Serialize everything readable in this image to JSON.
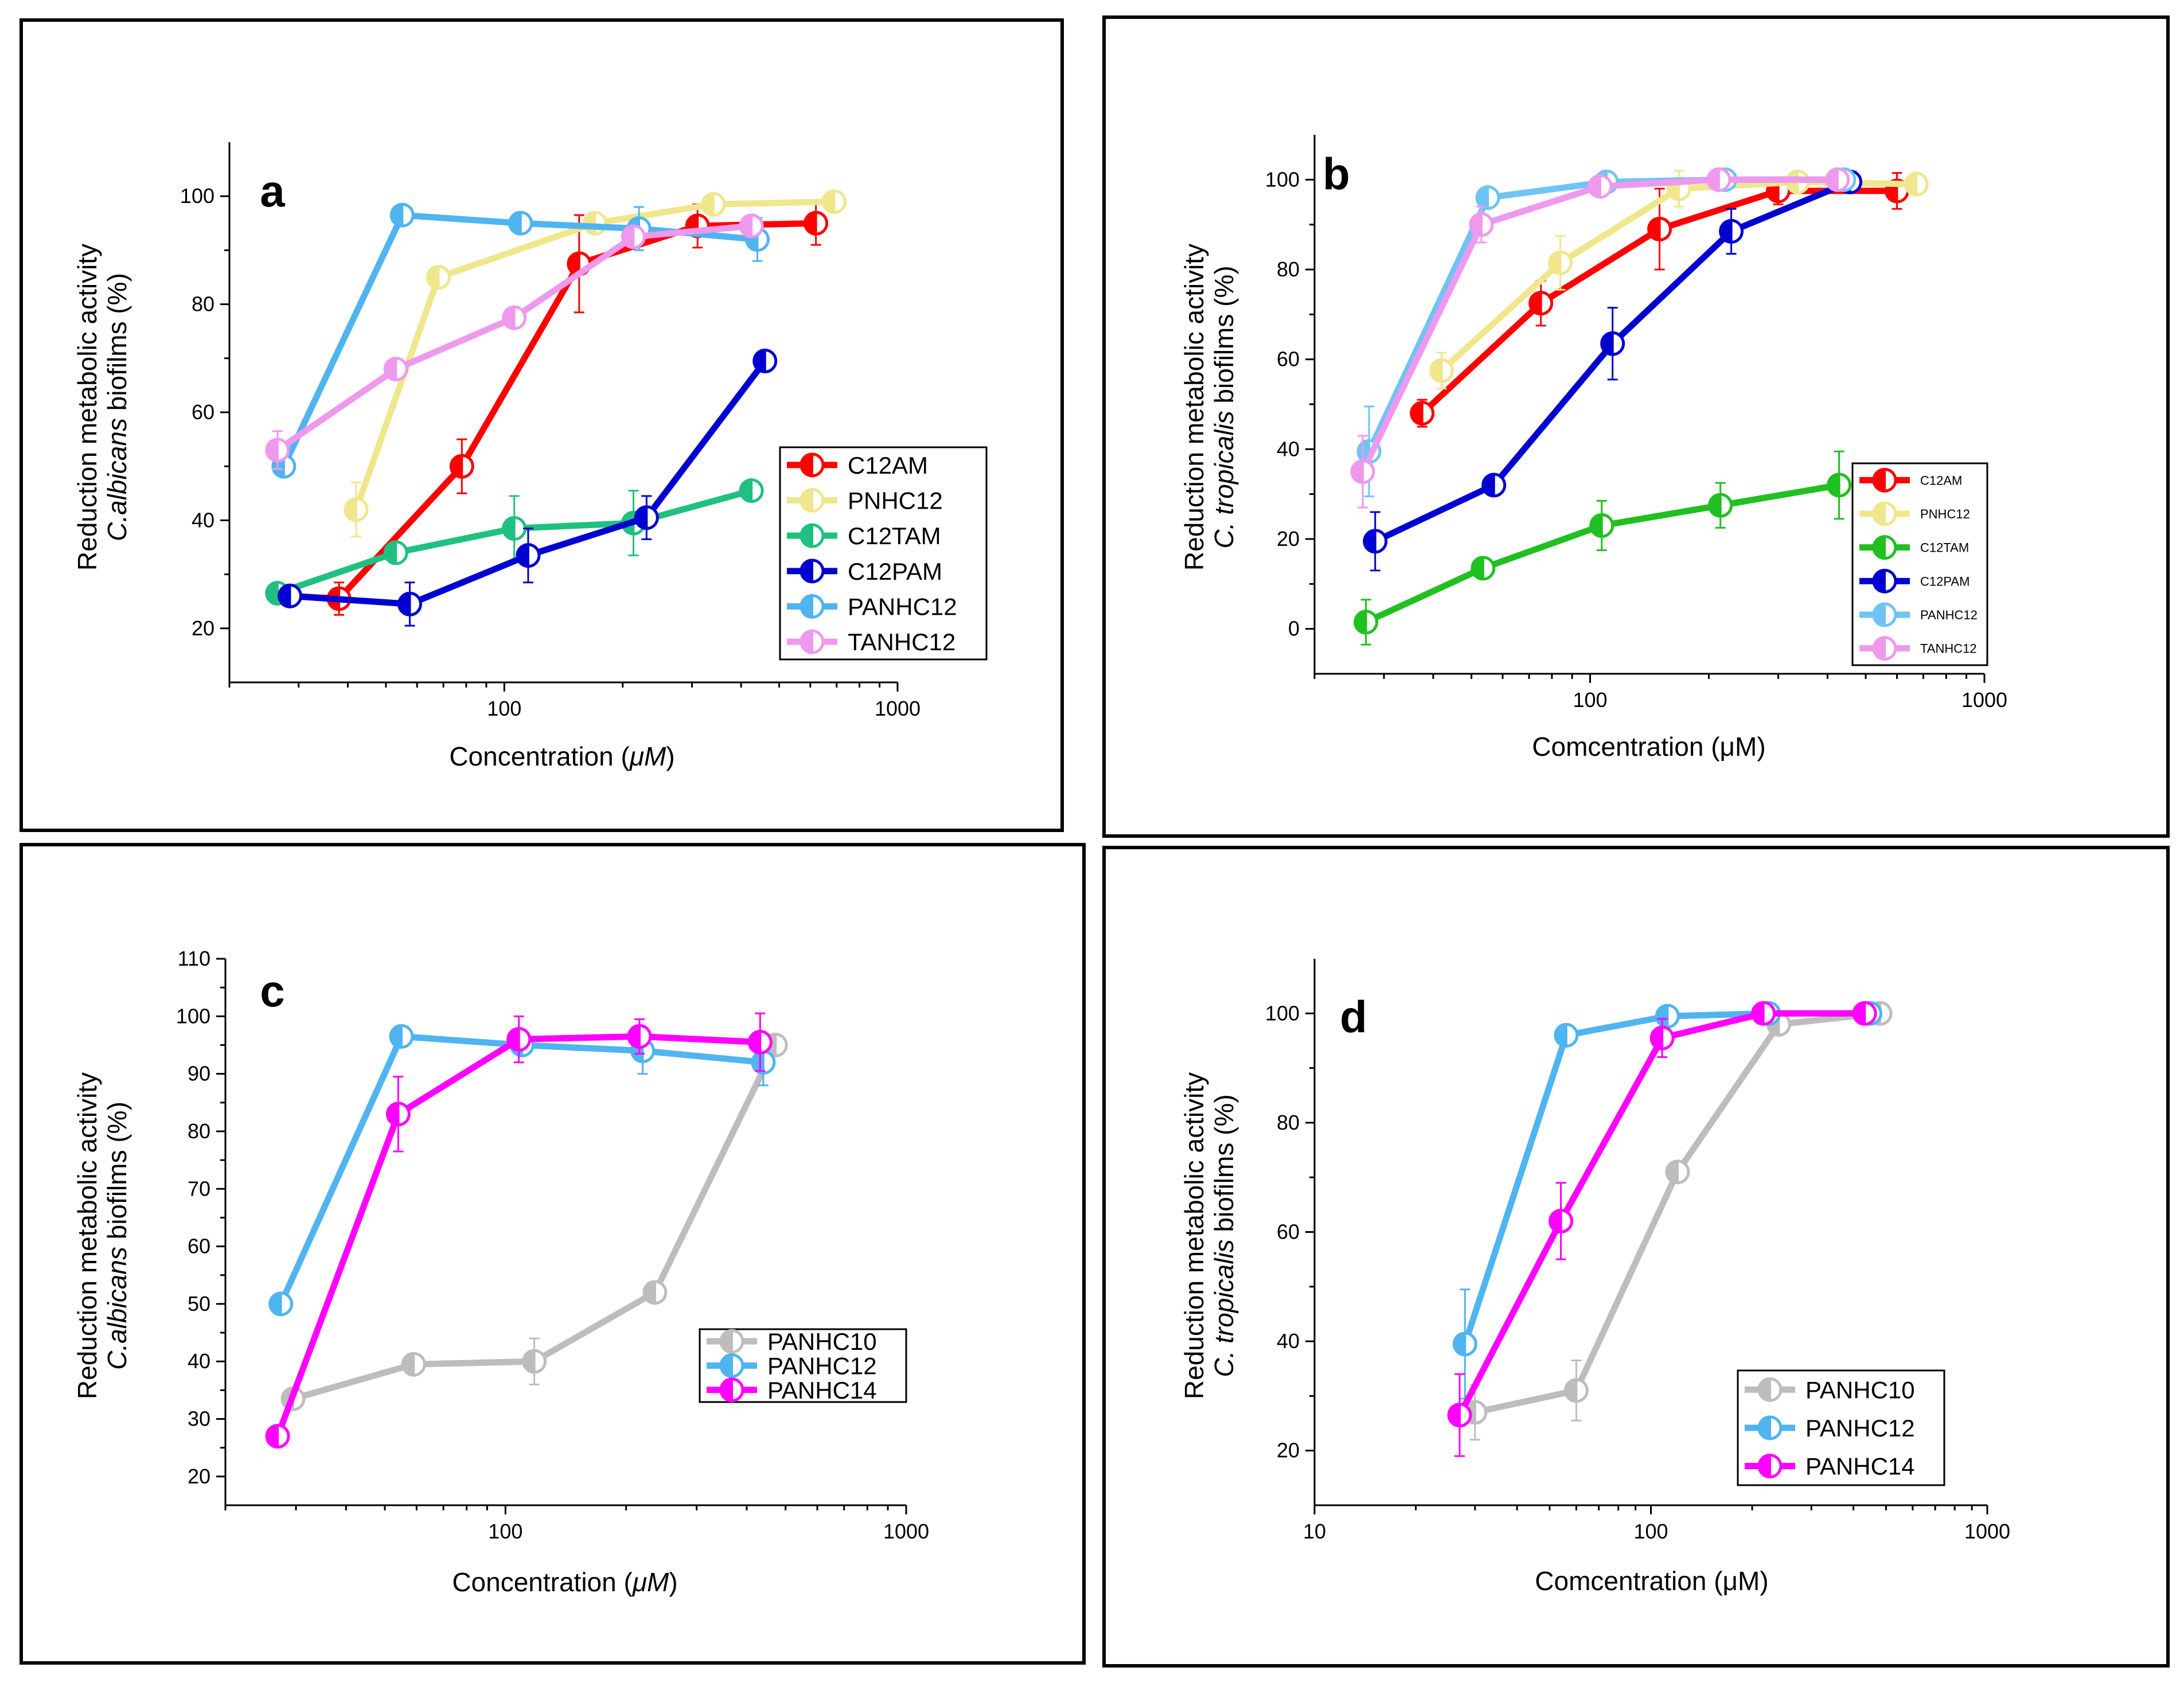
{
  "chart_data": [
    {
      "type": "line",
      "panel": "a",
      "xscale": "log",
      "xlim": [
        20,
        1000
      ],
      "ylim": [
        10,
        110
      ],
      "xticks": [
        "100",
        "1000"
      ],
      "yticks": [
        "20",
        "40",
        "60",
        "80",
        "100"
      ],
      "xlabel_pre": "Concentration (",
      "xlabel_unit": "μM",
      "xlabel_post": ")",
      "ylabel_line1": "Reduction metabolic activity",
      "ylabel_line2_italic": "C.albicans",
      "ylabel_line2_rest": " biofilms (%)",
      "legend_position": "bottom-right",
      "series": [
        {
          "name": "C12AM",
          "color": "#ff0000",
          "x": [
            28.5,
            38,
            78,
            155,
            310,
            620
          ],
          "y": [
            26,
            25.5,
            50,
            87.5,
            94.5,
            95
          ],
          "err": [
            1.5,
            3,
            5,
            9,
            4,
            4
          ]
        },
        {
          "name": "PNHC12",
          "color": "#f0e68c",
          "x": [
            42,
            68,
            170,
            340,
            690
          ],
          "y": [
            42,
            85,
            95,
            98.5,
            99
          ],
          "err": [
            5,
            0,
            0,
            0,
            0
          ]
        },
        {
          "name": "C12TAM",
          "color": "#20c080",
          "x": [
            26.5,
            53,
            106,
            213,
            425
          ],
          "y": [
            26.5,
            34,
            38.5,
            39.5,
            45.5
          ],
          "err": [
            0,
            0,
            6,
            6,
            0
          ]
        },
        {
          "name": "C12PAM",
          "color": "#0000d0",
          "x": [
            28.5,
            57.5,
            115,
            230,
            460
          ],
          "y": [
            26,
            24.5,
            33.5,
            40.5,
            69.5
          ],
          "err": [
            0,
            4,
            5,
            4,
            0
          ]
        },
        {
          "name": "PANHC12",
          "color": "#4fb4f0",
          "x": [
            27.5,
            55,
            110,
            220,
            440
          ],
          "y": [
            50,
            96.5,
            95,
            94,
            92
          ],
          "err": [
            0,
            0,
            0,
            4,
            4
          ]
        },
        {
          "name": "TANHC12",
          "color": "#ee99ee",
          "x": [
            26.5,
            53,
            106,
            213,
            425
          ],
          "y": [
            53,
            68,
            77.5,
            92.5,
            94.5
          ],
          "err": [
            3.5,
            0,
            0,
            0,
            2
          ]
        }
      ]
    },
    {
      "type": "line",
      "panel": "b",
      "xscale": "log",
      "xlim": [
        20,
        1000
      ],
      "ylim": [
        -10,
        110
      ],
      "xticks": [
        "100",
        "1000"
      ],
      "yticks": [
        "0",
        "20",
        "40",
        "60",
        "80",
        "100"
      ],
      "xlabel_pre": "Comcentration (",
      "xlabel_unit": "μM",
      "xlabel_post": ")",
      "ylabel_line1": "Reduction metabolic activity",
      "ylabel_line2_italic": "C. tropicalis",
      "ylabel_line2_rest": " biofilms (%)",
      "legend_position": "bottom-right",
      "series": [
        {
          "name": "C12AM",
          "color": "#ff0000",
          "x": [
            37.5,
            75,
            150,
            300,
            600
          ],
          "y": [
            48,
            72.5,
            89,
            97.5,
            97.5
          ],
          "err": [
            3,
            5,
            9,
            3,
            4
          ]
        },
        {
          "name": "PNHC12",
          "color": "#f0e68c",
          "x": [
            42,
            84,
            168,
            336,
            672
          ],
          "y": [
            57.5,
            81.5,
            98,
            99.5,
            99
          ],
          "err": [
            4,
            6,
            4,
            0,
            0
          ]
        },
        {
          "name": "C12TAM",
          "color": "#20c020",
          "x": [
            27,
            53.5,
            107,
            214,
            428
          ],
          "y": [
            1.5,
            13.5,
            23,
            27.5,
            32
          ],
          "err": [
            5,
            0,
            5.5,
            5,
            7.5
          ]
        },
        {
          "name": "C12PAM",
          "color": "#0000d0",
          "x": [
            28.5,
            57,
            114,
            228,
            456
          ],
          "y": [
            19.5,
            32,
            63.5,
            88.5,
            99.5
          ],
          "err": [
            6.5,
            0,
            8,
            5,
            2
          ]
        },
        {
          "name": "PANHC12",
          "color": "#6fc4f5",
          "x": [
            27.5,
            55,
            110,
            220,
            440
          ],
          "y": [
            39.5,
            96,
            99.5,
            100,
            100
          ],
          "err": [
            10,
            0,
            0,
            0,
            0
          ]
        },
        {
          "name": "TANHC12",
          "color": "#ee99ee",
          "x": [
            26.5,
            53,
            106,
            212,
            424
          ],
          "y": [
            35,
            90,
            98.5,
            100,
            100
          ],
          "err": [
            8,
            4,
            0,
            0,
            0
          ]
        }
      ]
    },
    {
      "type": "line",
      "panel": "c",
      "xscale": "log",
      "xlim": [
        20,
        1000
      ],
      "ylim": [
        15,
        110
      ],
      "xticks": [
        "100",
        "1000"
      ],
      "yticks": [
        "20",
        "30",
        "40",
        "50",
        "60",
        "70",
        "80",
        "90",
        "100",
        "110"
      ],
      "xlabel_pre": "Concentration (",
      "xlabel_unit": "μM",
      "xlabel_post": ")",
      "ylabel_line1": "Reduction metabolic activity",
      "ylabel_line2_italic": "C.albicans",
      "ylabel_line2_rest": " biofilms (%)",
      "legend_position": "bottom-right",
      "series": [
        {
          "name": "PANHC10",
          "color": "#bdbdbd",
          "x": [
            29.5,
            59,
            118,
            236,
            472
          ],
          "y": [
            33.5,
            39.5,
            40,
            52,
            95
          ],
          "err": [
            0,
            0,
            4,
            0,
            0
          ]
        },
        {
          "name": "PANHC12",
          "color": "#4fb4f0",
          "x": [
            27.5,
            55,
            110,
            220,
            440
          ],
          "y": [
            50,
            96.5,
            95,
            94,
            92
          ],
          "err": [
            0,
            0,
            0,
            4,
            4
          ]
        },
        {
          "name": "PANHC14",
          "color": "#ff00ff",
          "x": [
            27,
            54,
            108,
            216,
            432
          ],
          "y": [
            27,
            83,
            96,
            96.5,
            95.5
          ],
          "err": [
            0,
            6.5,
            4,
            3,
            5
          ]
        }
      ]
    },
    {
      "type": "line",
      "panel": "d",
      "xscale": "log",
      "xlim": [
        10,
        1000
      ],
      "ylim": [
        10,
        110
      ],
      "xticks": [
        "10",
        "100",
        "1000"
      ],
      "yticks": [
        "20",
        "40",
        "60",
        "80",
        "100"
      ],
      "xlabel_pre": "Comcentration (",
      "xlabel_unit": "μM",
      "xlabel_post": ")",
      "ylabel_line1": "Reduction metabolic activity",
      "ylabel_line2_italic": "C. tropicalis",
      "ylabel_line2_rest": " biofilms (%)",
      "legend_position": "bottom-right",
      "series": [
        {
          "name": "PANHC10",
          "color": "#bdbdbd",
          "x": [
            30,
            60,
            120,
            240,
            480
          ],
          "y": [
            27,
            31,
            71,
            98,
            100
          ],
          "err": [
            5,
            5.5,
            0,
            0,
            0
          ]
        },
        {
          "name": "PANHC12",
          "color": "#4fb4f0",
          "x": [
            28,
            56,
            112,
            224,
            448
          ],
          "y": [
            39.5,
            96,
            99.5,
            100,
            100
          ],
          "err": [
            10,
            0,
            0,
            0,
            0
          ]
        },
        {
          "name": "PANHC14",
          "color": "#ff00ff",
          "x": [
            27,
            54,
            108,
            216,
            432
          ],
          "y": [
            26.5,
            62,
            95.5,
            100,
            100
          ],
          "err": [
            7.5,
            7,
            3.5,
            0,
            0
          ]
        }
      ]
    }
  ]
}
